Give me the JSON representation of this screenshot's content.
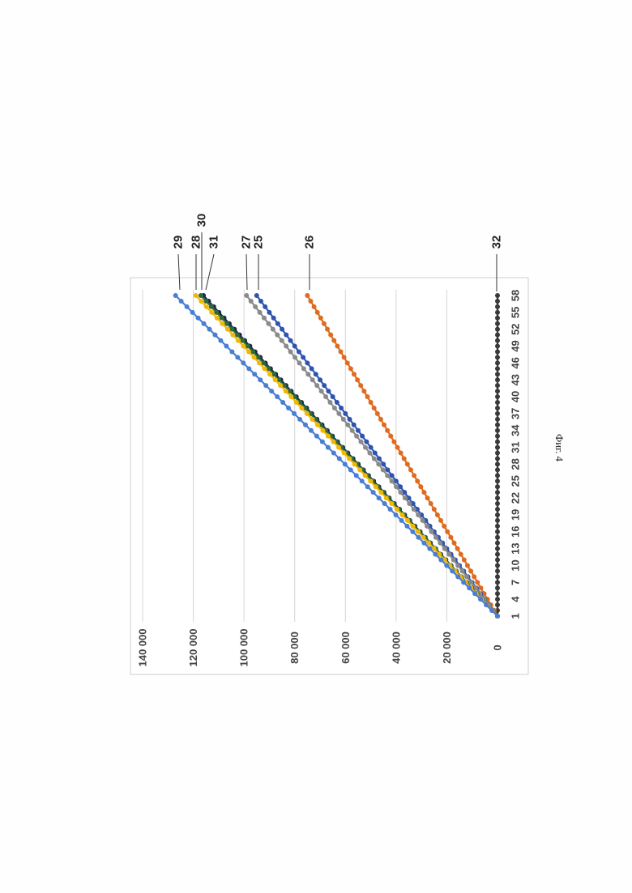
{
  "caption": "Фиг. 4",
  "chart_data": {
    "type": "line",
    "orientation": "rotated-90-clockwise",
    "title": "",
    "xlabel": "",
    "ylabel": "",
    "x_start": 1,
    "x_end": 58,
    "x_tick_labels": [
      "1",
      "4",
      "7",
      "10",
      "13",
      "16",
      "19",
      "22",
      "25",
      "28",
      "31",
      "34",
      "37",
      "40",
      "43",
      "46",
      "49",
      "52",
      "55",
      "58"
    ],
    "ylim": [
      0,
      140000
    ],
    "y_ticks": [
      0,
      20000,
      40000,
      60000,
      80000,
      100000,
      120000,
      140000
    ],
    "y_tick_labels": [
      "0",
      "20 000",
      "40 000",
      "60 000",
      "80 000",
      "100 000",
      "120 000",
      "140 000"
    ],
    "grid": true,
    "series": [
      {
        "name": "25",
        "color": "#2e54b0",
        "end_value": 95000
      },
      {
        "name": "26",
        "color": "#e06b1f",
        "end_value": 75000
      },
      {
        "name": "27",
        "color": "#8a8a8a",
        "end_value": 99000
      },
      {
        "name": "28",
        "color": "#f2b705",
        "end_value": 119000
      },
      {
        "name": "29",
        "color": "#4a7ed4",
        "end_value": 127000
      },
      {
        "name": "30",
        "color": "#2f6b3a",
        "end_value": 117000
      },
      {
        "name": "31",
        "color": "#1b2a4a",
        "end_value": 116000
      },
      {
        "name": "32",
        "color": "#3a3a3a",
        "end_value": 0
      }
    ],
    "callout_labels": [
      "29",
      "28",
      "30",
      "31",
      "27",
      "25",
      "26",
      "32"
    ]
  }
}
